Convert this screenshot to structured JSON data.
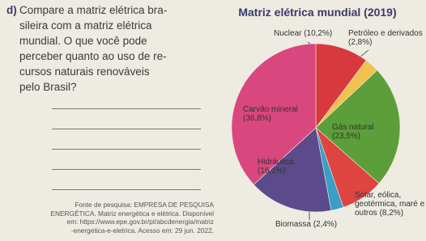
{
  "question": {
    "label": "d)",
    "lines": [
      "Compare a matriz elétrica bra-",
      "sileira com a matriz elétrica",
      "mundial. O que você pode",
      "perceber quanto ao uso de re-",
      "cursos naturais renováveis",
      "pelo Brasil?"
    ]
  },
  "source": {
    "lines": [
      "Fonte de pesquisa: EMPRESA DE PESQUISA",
      "ENERGÉTICA. Matriz energética e elétrica. Disponível",
      "em: https://www.epe.gov.br/pt/abcdenergia/matriz",
      "-energetica-e-eletrica. Acesso em: 29 jun. 2022."
    ]
  },
  "chart_data": {
    "type": "pie",
    "title": "Matriz elétrica mundial (2019)",
    "categories": [
      "Nuclear",
      "Petróleo e derivados",
      "Gás natural",
      "Solar, eólica, geotérmica, maré e outros",
      "Biomassa",
      "Hidráulica",
      "Carvão mineral"
    ],
    "values": [
      10.2,
      2.8,
      23.5,
      8.2,
      2.4,
      16.1,
      36.8
    ],
    "value_labels": [
      "(10,2%)",
      "(2,8%)",
      "(23,5%)",
      "(8,2%)",
      "(2,4%)",
      "(16,1%)",
      "(36,8%)"
    ],
    "colors": [
      "#d8393f",
      "#f2c14e",
      "#5c9e3a",
      "#de4440",
      "#3a9ec6",
      "#5b4a8c",
      "#d8477d"
    ]
  }
}
